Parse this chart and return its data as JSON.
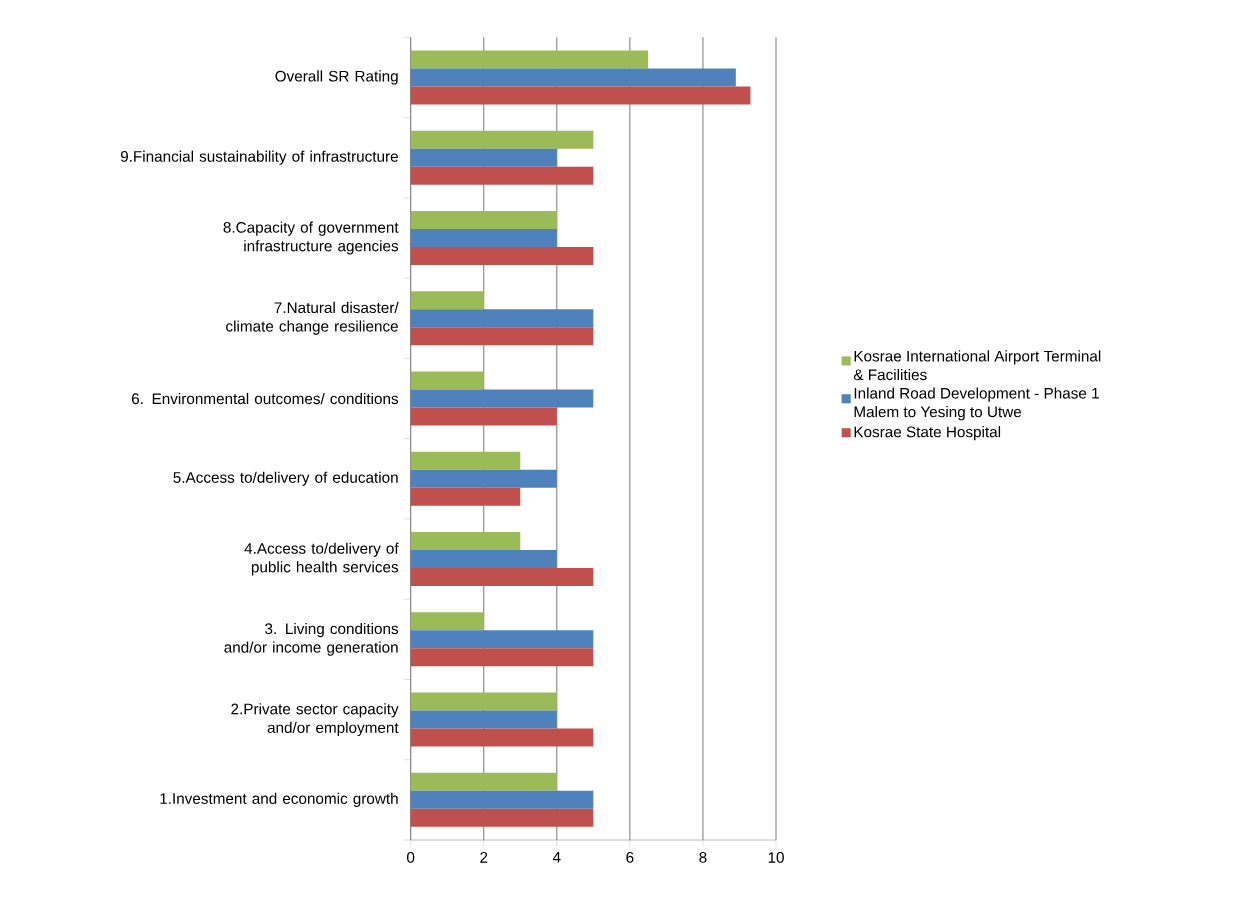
{
  "chart_data": {
    "type": "bar",
    "orientation": "horizontal",
    "categories": [
      "Overall SR Rating",
      "9.Financial sustainability of infrastructure",
      "8.Capacity of government infrastructure agencies",
      "7.Natural disaster/ climate change resilience",
      "6. Environmental outcomes/ conditions",
      "5.Access to/delivery of education",
      "4.Access to/delivery of public health services",
      "3. Living conditions and/or income generation",
      "2.Private sector capacity and/or employment",
      "1.Investment and economic growth"
    ],
    "series": [
      {
        "name": "Kosrae International Airport Terminal & Facilities",
        "color": "#9bbb59",
        "values": [
          6.5,
          5,
          4,
          2,
          2,
          3,
          3,
          2,
          4,
          4
        ]
      },
      {
        "name": "Inland Road Development - Phase 1 Malem to Yesing to Utwe",
        "color": "#4f81bd",
        "values": [
          8.9,
          4,
          4,
          5,
          5,
          4,
          4,
          5,
          4,
          5
        ]
      },
      {
        "name": "Kosrae State Hospital",
        "color": "#c0504d",
        "values": [
          9.3,
          5,
          5,
          5,
          4,
          3,
          5,
          5,
          5,
          5
        ]
      }
    ],
    "xlim": [
      0,
      10
    ],
    "xticks": [
      0,
      2,
      4,
      6,
      8,
      10
    ],
    "grid": "x",
    "legend": "right"
  }
}
